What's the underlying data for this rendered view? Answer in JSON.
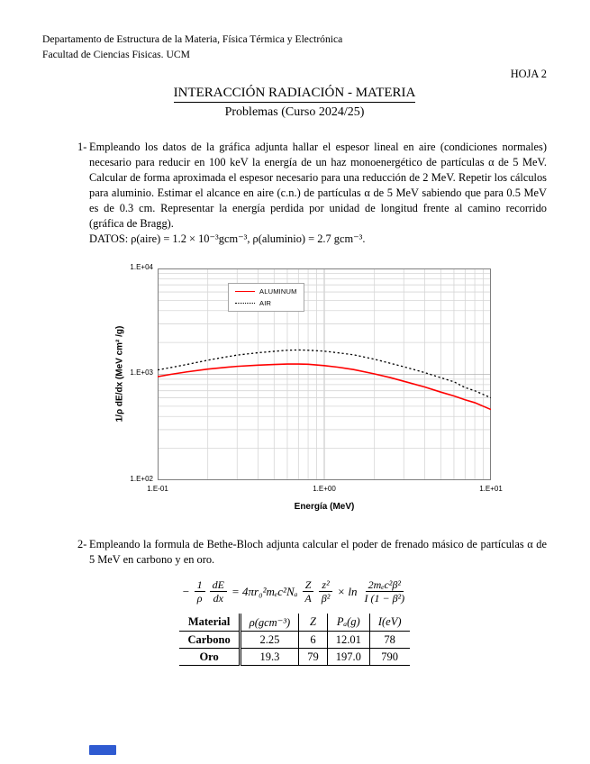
{
  "header": {
    "dept_line1": "Departamento de Estructura de la Materia, Física Térmica y Electrónica",
    "dept_line2": "Facultad de Ciencias Fisicas. UCM",
    "sheet_label": "HOJA 2",
    "title": "INTERACCIÓN RADIACIÓN - MATERIA",
    "subtitle": "Problemas (Curso 2024/25)"
  },
  "problem1": {
    "number": "1-",
    "text": "Empleando los datos de la gráfica adjunta hallar el espesor lineal en aire (condiciones normales) necesario para reducir en 100 keV la energía de un haz monoenergético de partículas α de 5 MeV. Calcular de forma aproximada el espesor necesario para una reducción de 2 MeV. Repetir los cálculos para aluminio. Estimar el alcance en aire (c.n.) de partículas α de 5 MeV sabiendo que para 0.5 MeV es de 0.3 cm. Representar la energía perdida por unidad de longitud frente al camino recorrido (gráfica de Bragg).",
    "datos": "DATOS: ρ(aire) = 1.2 × 10⁻³gcm⁻³, ρ(aluminio) = 2.7 gcm⁻³."
  },
  "chart_data": {
    "type": "line",
    "xlabel": "Energía (MeV)",
    "ylabel": "1/ρ dE/dx (MeV cm² /g)",
    "x_ticks": [
      "1.E-01",
      "1.E+00",
      "1.E+01"
    ],
    "y_ticks": [
      "1.E+04",
      "1.E+03",
      "1.E+02"
    ],
    "xlim": [
      0.1,
      10
    ],
    "ylim": [
      100,
      10000
    ],
    "log_x": true,
    "log_y": true,
    "grid": true,
    "legend_position": "top-inside",
    "series": [
      {
        "name": "ALUMINUM",
        "color": "#ff0000",
        "style": "solid",
        "x": [
          0.1,
          0.12,
          0.15,
          0.2,
          0.25,
          0.3,
          0.4,
          0.5,
          0.6,
          0.7,
          0.8,
          1.0,
          1.2,
          1.5,
          2,
          2.5,
          3,
          4,
          5,
          6,
          7,
          8,
          10
        ],
        "y": [
          950,
          1000,
          1055,
          1120,
          1160,
          1190,
          1220,
          1240,
          1250,
          1250,
          1245,
          1210,
          1170,
          1110,
          1010,
          930,
          860,
          760,
          680,
          625,
          575,
          540,
          465
        ]
      },
      {
        "name": "AIR",
        "color": "#000000",
        "style": "dotted",
        "x": [
          0.1,
          0.12,
          0.15,
          0.2,
          0.25,
          0.3,
          0.4,
          0.5,
          0.6,
          0.7,
          0.8,
          1.0,
          1.2,
          1.5,
          2,
          2.5,
          3,
          4,
          5,
          6,
          7,
          8,
          10
        ],
        "y": [
          1100,
          1160,
          1240,
          1360,
          1450,
          1520,
          1600,
          1650,
          1690,
          1700,
          1690,
          1655,
          1600,
          1530,
          1390,
          1270,
          1180,
          1040,
          930,
          850,
          750,
          700,
          600
        ]
      }
    ]
  },
  "problem2": {
    "number": "2-",
    "text": "Empleando la formula de Bethe-Bloch adjunta calcular el poder de frenado másico de partículas α de 5 MeV en carbono y en oro."
  },
  "formula": {
    "lhs_sign": "−",
    "frac1_num": "1",
    "frac1_den": "ρ",
    "frac2_num": "dE",
    "frac2_den": "dx",
    "equals": "= 4πr₀²mₑc²Nₐ",
    "frac3_num": "Z",
    "frac3_den": "A",
    "frac4_num": "z²",
    "frac4_den": "β²",
    "times": "× ln",
    "frac5_num": "2mₑc²β²",
    "frac5_den": "I (1 − β²)"
  },
  "table": {
    "headers": [
      "Material",
      "ρ(gcm⁻³)",
      "Z",
      "Pₐ(g)",
      "I(eV)"
    ],
    "rows": [
      [
        "Carbono",
        "2.25",
        "6",
        "12.01",
        "78"
      ],
      [
        "Oro",
        "19.3",
        "79",
        "197.0",
        "790"
      ]
    ]
  }
}
